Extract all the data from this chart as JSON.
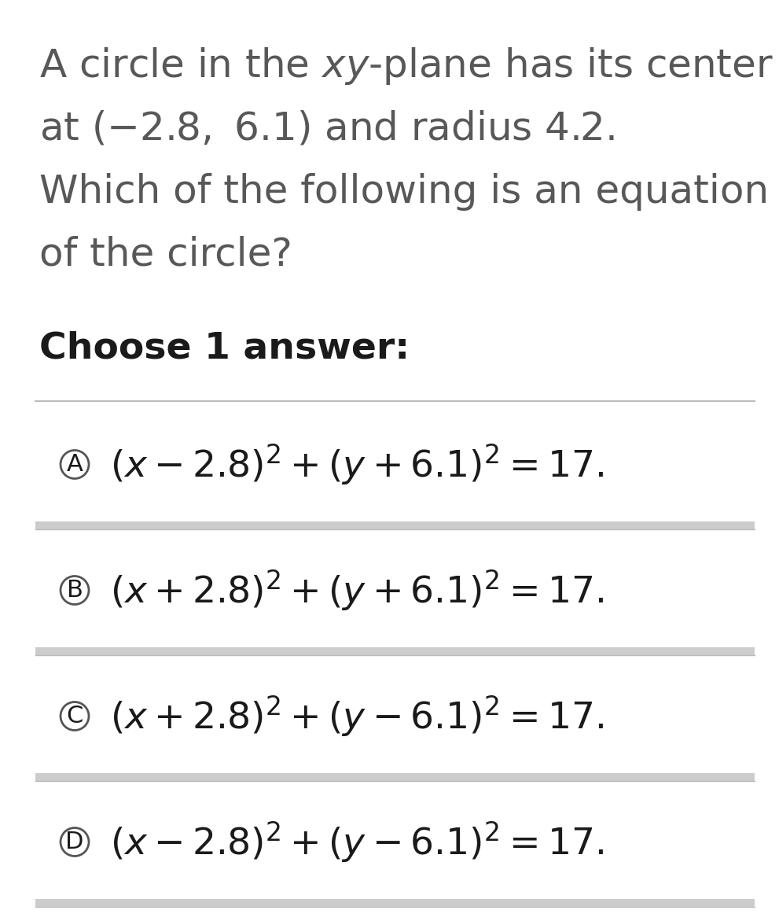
{
  "background_color": "#ffffff",
  "text_color": "#585858",
  "dark_text_color": "#1a1a1a",
  "choose_label": "Choose 1 answer:",
  "options": [
    {
      "label": "A",
      "formula": "$(x - 2.8)^2 + (y + 6.1)^2 = 17.$"
    },
    {
      "label": "B",
      "formula": "$(x + 2.8)^2 + (y + 6.1)^2 = 17.$"
    },
    {
      "label": "C",
      "formula": "$(x + 2.8)^2 + (y - 6.1)^2 = 17.$"
    },
    {
      "label": "D",
      "formula": "$(x - 2.8)^2 + (y - 6.1)^2 = 17.$"
    }
  ],
  "separator_color": "#bbbbbb",
  "option_bg_color": "#cccccc",
  "circle_color": "#555555",
  "figsize": [
    9.91,
    11.71
  ],
  "dpi": 100,
  "q_fontsize": 36,
  "choose_fontsize": 34,
  "formula_fontsize": 34,
  "label_fontsize": 22
}
